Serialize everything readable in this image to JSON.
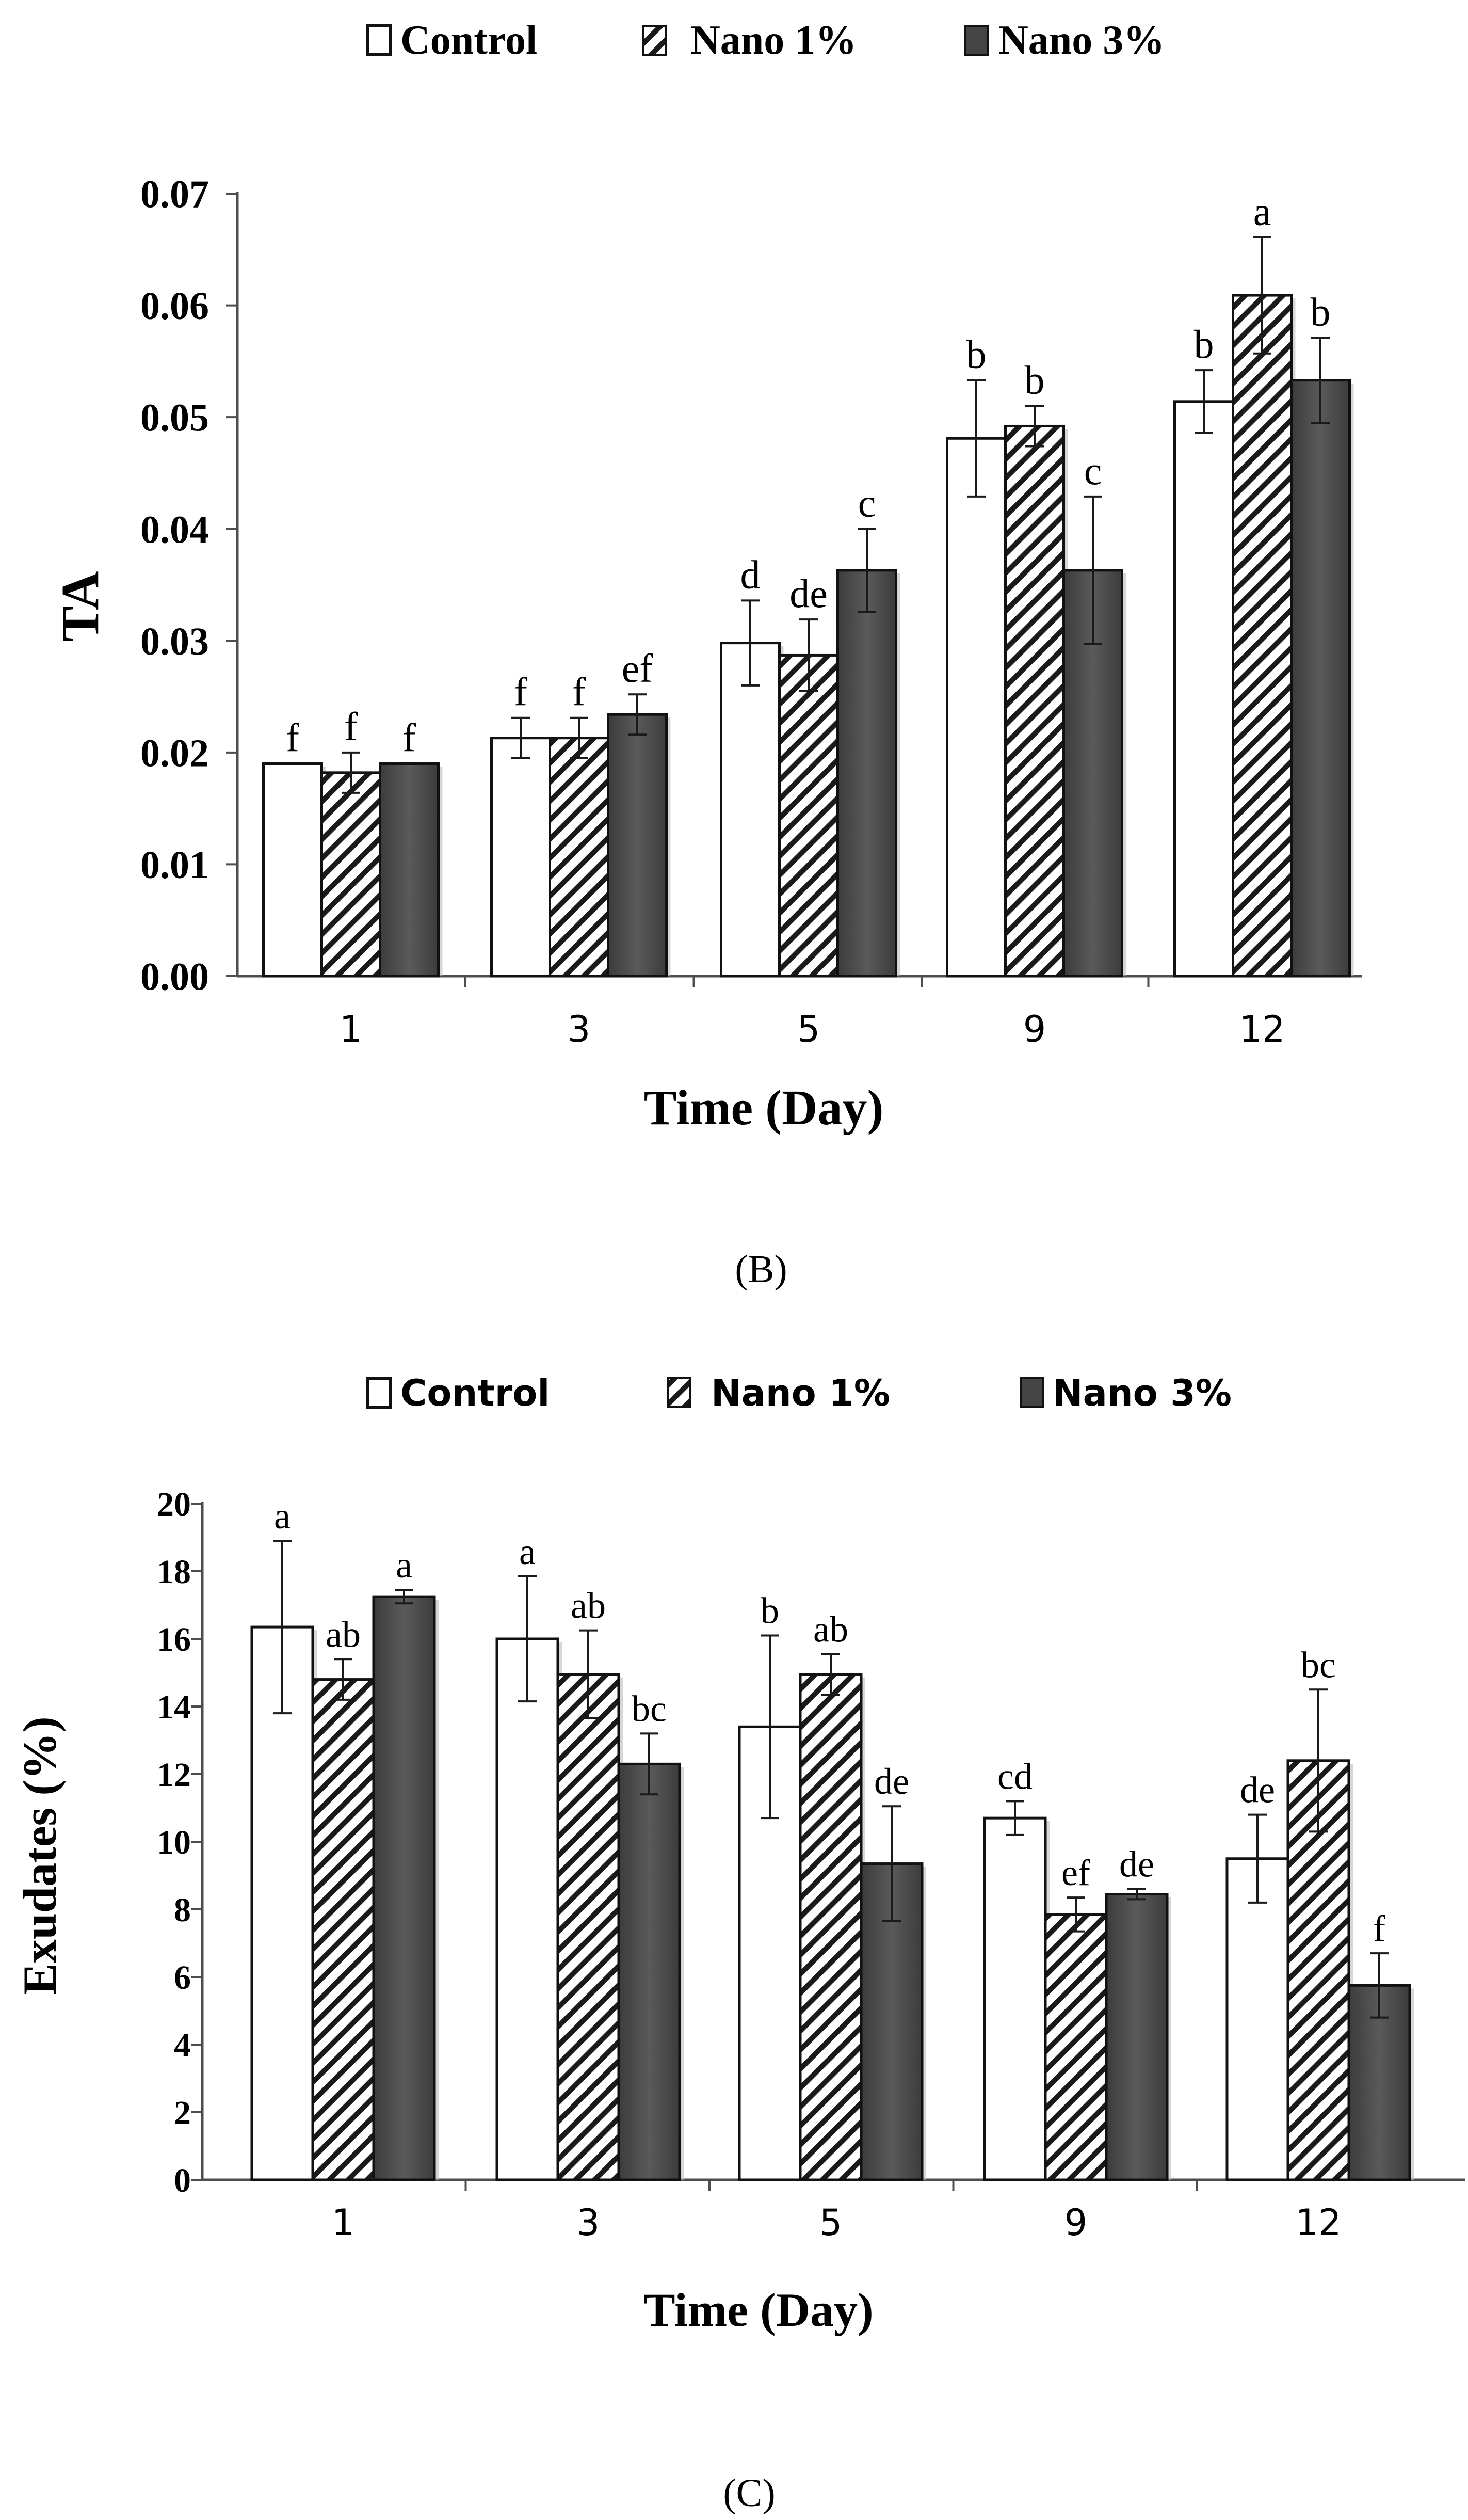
{
  "panel_labels": {
    "b": "(B)",
    "c": "(C)"
  },
  "colors": {
    "control": "#ffffff",
    "nano1_stripe": "#1a1a1a",
    "nano3": "#505050",
    "axis": "#4d4d4d"
  },
  "icons": {
    "control": "hollow-square",
    "nano1": "hatched-square",
    "nano3": "filled-square"
  },
  "chart_data": [
    {
      "type": "bar",
      "panel": "(B)",
      "title": "",
      "legend": [
        "Control",
        "Nano 1%",
        "Nano 3%"
      ],
      "legend_position": "top-center",
      "xlabel": "Time (Day)",
      "ylabel": "TA",
      "categories": [
        "1",
        "3",
        "5",
        "9",
        "12"
      ],
      "yticks": [
        "0.00",
        "0.01",
        "0.02",
        "0.03",
        "0.04",
        "0.05",
        "0.06",
        "0.07"
      ],
      "ylim": [
        0,
        0.07
      ],
      "grid": false,
      "series": [
        {
          "name": "Control",
          "values": [
            0.019,
            0.0213,
            0.0298,
            0.0481,
            0.0514
          ],
          "errors": [
            0,
            0.0018,
            0.0038,
            0.0052,
            0.0028
          ],
          "letters": [
            "f",
            "f",
            "d",
            "b",
            "b"
          ]
        },
        {
          "name": "Nano 1%",
          "values": [
            0.0182,
            0.0213,
            0.0287,
            0.0492,
            0.0609
          ],
          "errors": [
            0.0018,
            0.0018,
            0.0032,
            0.0018,
            0.0052
          ],
          "letters": [
            "f",
            "f",
            "de",
            "b",
            "a"
          ]
        },
        {
          "name": "Nano 3%",
          "values": [
            0.019,
            0.0234,
            0.0363,
            0.0363,
            0.0533
          ],
          "errors": [
            0,
            0.0018,
            0.0037,
            0.0066,
            0.0038
          ],
          "letters": [
            "f",
            "ef",
            "c",
            "c",
            "b"
          ]
        }
      ]
    },
    {
      "type": "bar",
      "panel": "(C)",
      "title": "",
      "legend": [
        "Control",
        "Nano 1%",
        "Nano 3%"
      ],
      "legend_position": "top-center",
      "xlabel": "Time (Day)",
      "ylabel": "Exudates (%)",
      "categories": [
        "1",
        "3",
        "5",
        "9",
        "12"
      ],
      "yticks": [
        "0",
        "2",
        "4",
        "6",
        "8",
        "10",
        "12",
        "14",
        "16",
        "18",
        "20"
      ],
      "ylim": [
        0,
        20
      ],
      "grid": false,
      "series": [
        {
          "name": "Control",
          "values": [
            16.35,
            16.0,
            13.4,
            10.7,
            9.5
          ],
          "errors": [
            2.55,
            1.85,
            2.7,
            0.5,
            1.3
          ],
          "letters": [
            "a",
            "a",
            "b",
            "cd",
            "de"
          ]
        },
        {
          "name": "Nano 1%",
          "values": [
            14.8,
            14.95,
            14.95,
            7.85,
            12.4
          ],
          "errors": [
            0.6,
            1.3,
            0.6,
            0.5,
            2.1
          ],
          "letters": [
            "ab",
            "ab",
            "ab",
            "ef",
            "bc"
          ]
        },
        {
          "name": "Nano 3%",
          "values": [
            17.25,
            12.3,
            9.35,
            8.45,
            5.75
          ],
          "errors": [
            0.2,
            0.9,
            1.7,
            0.15,
            0.95
          ],
          "letters": [
            "a",
            "bc",
            "de",
            "de",
            "f"
          ]
        }
      ]
    }
  ]
}
